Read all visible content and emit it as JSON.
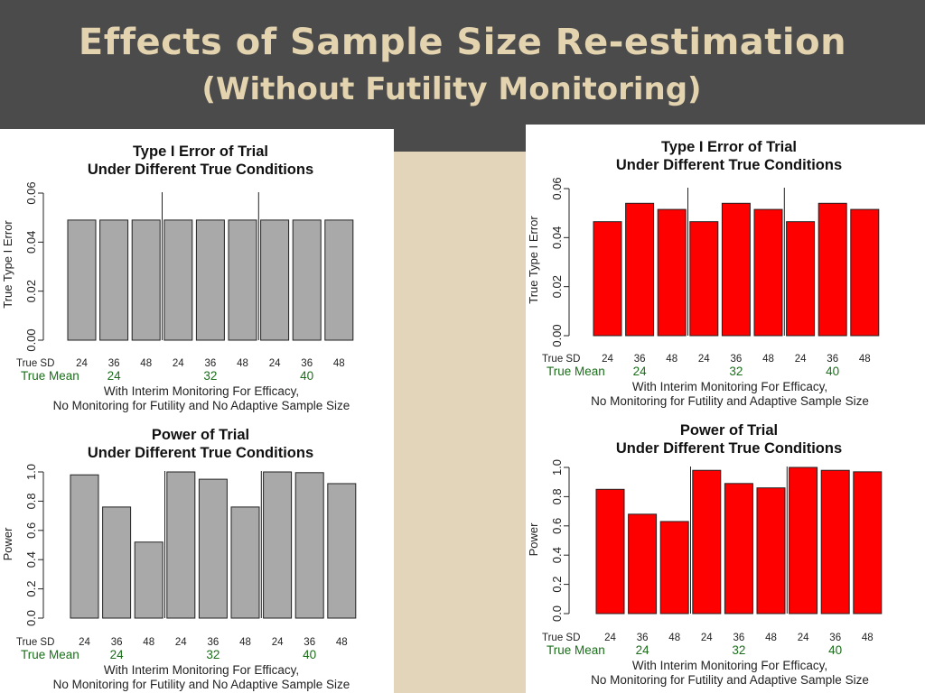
{
  "slide": {
    "title": "Effects of Sample Size Re-estimation",
    "subtitle": "(Without Futility Monitoring)"
  },
  "colors": {
    "header_bg": "#4b4b4b",
    "title_text": "#e3d3ae",
    "slide_bg": "#e3d5b9",
    "bar_gray": "#a9a9a9",
    "bar_red": "#ff0000",
    "mean_label": "#1a6e1a"
  },
  "chart_data": [
    {
      "type": "bar",
      "title": "Type I Error of Trial",
      "subtitle": "Under Different True Conditions",
      "ylabel": "True Type I Error",
      "ylim": [
        0,
        0.06
      ],
      "yticks": [
        "0.00",
        "0.02",
        "0.04",
        "0.06"
      ],
      "sd_label": "True SD",
      "categories": [
        "24",
        "36",
        "48",
        "24",
        "36",
        "48",
        "24",
        "36",
        "48"
      ],
      "mean_label": "True Mean",
      "means": [
        "24",
        "32",
        "40"
      ],
      "values": [
        0.049,
        0.049,
        0.049,
        0.049,
        0.049,
        0.049,
        0.049,
        0.049,
        0.049
      ],
      "color": "#a9a9a9",
      "caption": [
        "With Interim Monitoring For Efficacy,",
        "No Monitoring for Futility and No Adaptive Sample Size"
      ]
    },
    {
      "type": "bar",
      "title": "Type I Error of Trial",
      "subtitle": "Under Different True Conditions",
      "ylabel": "True Type I Error",
      "ylim": [
        0,
        0.06
      ],
      "yticks": [
        "0.00",
        "0.02",
        "0.04",
        "0.06"
      ],
      "sd_label": "True SD",
      "categories": [
        "24",
        "36",
        "48",
        "24",
        "36",
        "48",
        "24",
        "36",
        "48"
      ],
      "mean_label": "True Mean",
      "means": [
        "24",
        "32",
        "40"
      ],
      "values": [
        0.0465,
        0.054,
        0.0515,
        0.0465,
        0.054,
        0.0515,
        0.0465,
        0.054,
        0.0515
      ],
      "color": "#ff0000",
      "caption": [
        "With Interim Monitoring For Efficacy,",
        "No Monitoring for Futility and Adaptive Sample Size"
      ]
    },
    {
      "type": "bar",
      "title": "Power of Trial",
      "subtitle": "Under Different True Conditions",
      "ylabel": "Power",
      "ylim": [
        0,
        1.0
      ],
      "yticks": [
        "0.0",
        "0.2",
        "0.4",
        "0.6",
        "0.8",
        "1.0"
      ],
      "sd_label": "True SD",
      "categories": [
        "24",
        "36",
        "48",
        "24",
        "36",
        "48",
        "24",
        "36",
        "48"
      ],
      "mean_label": "True Mean",
      "means": [
        "24",
        "32",
        "40"
      ],
      "values": [
        0.98,
        0.76,
        0.52,
        1.0,
        0.95,
        0.76,
        1.0,
        0.995,
        0.92
      ],
      "color": "#a9a9a9",
      "caption": [
        "With Interim Monitoring For Efficacy,",
        "No Monitoring for Futility and No Adaptive Sample Size"
      ]
    },
    {
      "type": "bar",
      "title": "Power of Trial",
      "subtitle": "Under Different True Conditions",
      "ylabel": "Power",
      "ylim": [
        0,
        1.0
      ],
      "yticks": [
        "0.0",
        "0.2",
        "0.4",
        "0.6",
        "0.8",
        "1.0"
      ],
      "sd_label": "True SD",
      "categories": [
        "24",
        "36",
        "48",
        "24",
        "36",
        "48",
        "24",
        "36",
        "48"
      ],
      "mean_label": "True Mean",
      "means": [
        "24",
        "32",
        "40"
      ],
      "values": [
        0.85,
        0.68,
        0.63,
        0.98,
        0.89,
        0.86,
        1.0,
        0.98,
        0.97
      ],
      "color": "#ff0000",
      "caption": [
        "With Interim Monitoring For Efficacy,",
        "No Monitoring for Futility and Adaptive Sample Size"
      ]
    }
  ]
}
